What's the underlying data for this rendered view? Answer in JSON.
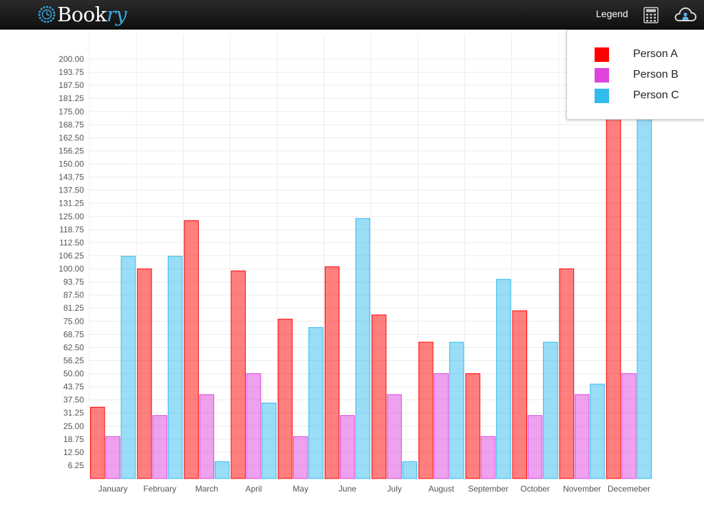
{
  "app": {
    "name_main": "Book",
    "name_accent": "ry",
    "legend_button": "Legend",
    "icons": [
      "logo-icon",
      "calculator-icon",
      "cloud-user-icon"
    ]
  },
  "legend": {
    "items": [
      {
        "label": "Person A",
        "color": "#ff0000"
      },
      {
        "label": "Person B",
        "color": "#dd44dd"
      },
      {
        "label": "Person C",
        "color": "#33bbee"
      }
    ]
  },
  "chart_data": {
    "type": "bar",
    "categories": [
      "January",
      "February",
      "March",
      "April",
      "May",
      "June",
      "July",
      "August",
      "September",
      "October",
      "November",
      "Decemeber"
    ],
    "series": [
      {
        "name": "Person A",
        "color": "#ff0000",
        "values": [
          34,
          100,
          123,
          99,
          76,
          101,
          78,
          65,
          50,
          80,
          100,
          175
        ]
      },
      {
        "name": "Person B",
        "color": "#dd44dd",
        "values": [
          20,
          30,
          40,
          50,
          20,
          30,
          40,
          50,
          20,
          30,
          40,
          50
        ]
      },
      {
        "name": "Person C",
        "color": "#33bbee",
        "values": [
          106,
          106,
          8,
          36,
          72,
          124,
          8,
          65,
          95,
          65,
          45,
          175
        ]
      }
    ],
    "yticks": [
      "6.25",
      "12.50",
      "18.75",
      "25.00",
      "31.25",
      "37.50",
      "43.75",
      "50.00",
      "56.25",
      "62.50",
      "68.75",
      "75.00",
      "81.25",
      "87.50",
      "93.75",
      "100.00",
      "106.25",
      "112.50",
      "118.75",
      "125.00",
      "131.25",
      "137.50",
      "143.75",
      "150.00",
      "156.25",
      "162.50",
      "168.75",
      "175.00",
      "181.25",
      "187.50",
      "193.75",
      "200.00"
    ],
    "ylim": [
      0,
      210
    ],
    "grid": true,
    "legend_position": "top-right"
  }
}
